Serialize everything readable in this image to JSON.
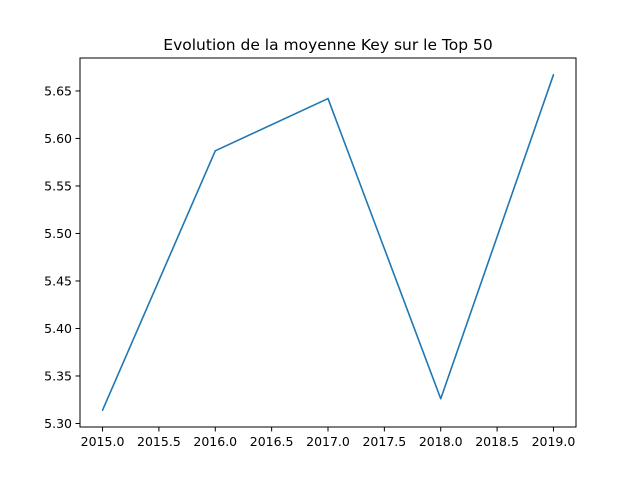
{
  "chart_data": {
    "type": "line",
    "title": "Evolution de la moyenne Key sur le Top 50",
    "xlabel": "",
    "ylabel": "",
    "x": [
      2015.0,
      2016.0,
      2017.0,
      2018.0,
      2019.0
    ],
    "series": [
      {
        "values": [
          5.314,
          5.587,
          5.642,
          5.326,
          5.667
        ]
      }
    ],
    "xlim": [
      2014.8,
      2019.2
    ],
    "ylim": [
      5.2963,
      5.6847
    ],
    "xticks": [
      2015.0,
      2015.5,
      2016.0,
      2016.5,
      2017.0,
      2017.5,
      2018.0,
      2018.5,
      2019.0
    ],
    "xtick_labels": [
      "2015.0",
      "2015.5",
      "2016.0",
      "2016.5",
      "2017.0",
      "2017.5",
      "2018.0",
      "2018.5",
      "2019.0"
    ],
    "yticks": [
      5.3,
      5.35,
      5.4,
      5.45,
      5.5,
      5.55,
      5.6,
      5.65
    ],
    "ytick_labels": [
      "5.30",
      "5.35",
      "5.40",
      "5.45",
      "5.50",
      "5.55",
      "5.60",
      "5.65"
    ],
    "grid": false,
    "line_color": "#1f77b4"
  }
}
